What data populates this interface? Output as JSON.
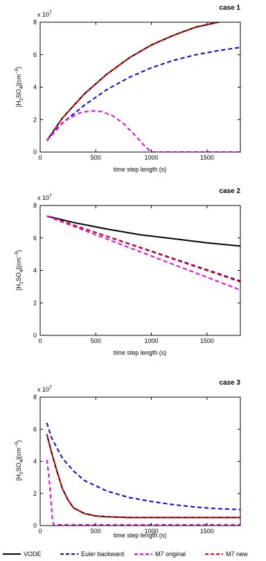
{
  "legend": [
    {
      "label": "VODE",
      "color": "#000000",
      "dash": "solid"
    },
    {
      "label": "Euler backward",
      "color": "#0000ee",
      "dash": "dashed"
    },
    {
      "label": "M7 original",
      "color": "#ee00ee",
      "dash": "dashed"
    },
    {
      "label": "M7 new",
      "color": "#ee0000",
      "dash": "dashed"
    }
  ],
  "chart_data": [
    {
      "type": "line",
      "title": "case 1",
      "xlabel": "time step length (s)",
      "ylabel_main": "[H",
      "ylabel_sub1": "2",
      "ylabel_mid": "SO",
      "ylabel_sub2": "4",
      "ylabel_unit": "](cm",
      "ylabel_sup": "−3",
      "ylabel_close": ")",
      "multiplier_base": "x 10",
      "multiplier_exp": "7",
      "xlim": [
        0,
        1800
      ],
      "ylim": [
        0,
        8
      ],
      "xticks": [
        0,
        500,
        1000,
        1500
      ],
      "yticks": [
        0,
        2,
        4,
        6,
        8
      ],
      "series": [
        {
          "name": "VODE",
          "color": "#000000",
          "dash": "solid",
          "x": [
            60,
            200,
            400,
            600,
            800,
            1000,
            1200,
            1400,
            1600,
            1800
          ],
          "y": [
            0.7,
            2.1,
            3.6,
            4.8,
            5.8,
            6.6,
            7.2,
            7.7,
            8.0,
            8.2
          ]
        },
        {
          "name": "M7 new",
          "color": "#ee0000",
          "dash": "dashed",
          "x": [
            60,
            200,
            400,
            600,
            800,
            1000,
            1200,
            1400,
            1600,
            1800
          ],
          "y": [
            0.7,
            2.1,
            3.6,
            4.8,
            5.8,
            6.6,
            7.2,
            7.7,
            8.0,
            8.2
          ]
        },
        {
          "name": "Euler backward",
          "color": "#0000ee",
          "dash": "dashed",
          "x": [
            60,
            200,
            400,
            600,
            800,
            1000,
            1200,
            1400,
            1600,
            1800
          ],
          "y": [
            0.7,
            1.8,
            2.9,
            3.85,
            4.6,
            5.2,
            5.65,
            6.0,
            6.25,
            6.45
          ]
        },
        {
          "name": "M7 original",
          "color": "#ee00ee",
          "dash": "dashed",
          "x": [
            60,
            150,
            250,
            350,
            450,
            550,
            650,
            750,
            850,
            950,
            1000,
            1200,
            1500,
            1800
          ],
          "y": [
            0.7,
            1.5,
            2.05,
            2.4,
            2.55,
            2.5,
            2.25,
            1.75,
            1.05,
            0.3,
            0,
            0,
            0,
            0
          ]
        }
      ]
    },
    {
      "type": "line",
      "title": "case 2",
      "xlabel": "time step length (s)",
      "ylabel_main": "[H",
      "ylabel_sub1": "2",
      "ylabel_mid": "SO",
      "ylabel_sub2": "4",
      "ylabel_unit": "](cm",
      "ylabel_sup": "−3",
      "ylabel_close": ")",
      "multiplier_base": "x 10",
      "multiplier_exp": "7",
      "xlim": [
        0,
        1800
      ],
      "ylim": [
        0,
        8
      ],
      "xticks": [
        0,
        500,
        1000,
        1500
      ],
      "yticks": [
        0,
        2,
        4,
        6,
        8
      ],
      "series": [
        {
          "name": "VODE",
          "color": "#000000",
          "dash": "solid",
          "x": [
            60,
            300,
            600,
            900,
            1200,
            1500,
            1800
          ],
          "y": [
            7.35,
            6.95,
            6.55,
            6.2,
            5.95,
            5.7,
            5.5
          ]
        },
        {
          "name": "Euler backward",
          "color": "#0000ee",
          "dash": "dashed",
          "x": [
            60,
            1800
          ],
          "y": [
            7.35,
            3.35
          ]
        },
        {
          "name": "M7 new",
          "color": "#ee0000",
          "dash": "dashed",
          "x": [
            60,
            1800
          ],
          "y": [
            7.35,
            3.3
          ]
        },
        {
          "name": "M7 original",
          "color": "#ee00ee",
          "dash": "dashed",
          "x": [
            60,
            1800
          ],
          "y": [
            7.35,
            2.8
          ]
        }
      ]
    },
    {
      "type": "line",
      "title": "case 3",
      "xlabel": "time step length (s)",
      "ylabel_main": "[H",
      "ylabel_sub1": "2",
      "ylabel_mid": "SO",
      "ylabel_sub2": "4",
      "ylabel_unit": "](cm",
      "ylabel_sup": "−3",
      "ylabel_close": ")",
      "multiplier_base": "x 10",
      "multiplier_exp": "7",
      "xlim": [
        0,
        1800
      ],
      "ylim": [
        0,
        8
      ],
      "xticks": [
        0,
        500,
        1000,
        1500
      ],
      "yticks": [
        0,
        2,
        4,
        6,
        8
      ],
      "series": [
        {
          "name": "VODE",
          "color": "#000000",
          "dash": "solid",
          "x": [
            60,
            100,
            150,
            200,
            250,
            300,
            400,
            500,
            600,
            800,
            1000,
            1400,
            1800
          ],
          "y": [
            5.7,
            4.6,
            3.4,
            2.3,
            1.6,
            1.1,
            0.75,
            0.6,
            0.55,
            0.5,
            0.5,
            0.5,
            0.5
          ]
        },
        {
          "name": "M7 new",
          "color": "#ee0000",
          "dash": "dashed",
          "x": [
            60,
            100,
            150,
            200,
            250,
            300,
            400,
            500,
            600,
            800,
            1000,
            1400,
            1800
          ],
          "y": [
            5.7,
            4.6,
            3.4,
            2.3,
            1.6,
            1.1,
            0.75,
            0.6,
            0.55,
            0.5,
            0.5,
            0.5,
            0.5
          ]
        },
        {
          "name": "Euler backward",
          "color": "#0000ee",
          "dash": "dashed",
          "x": [
            60,
            100,
            200,
            300,
            400,
            600,
            800,
            1000,
            1200,
            1400,
            1600,
            1800
          ],
          "y": [
            6.4,
            5.5,
            4.2,
            3.4,
            2.8,
            2.15,
            1.75,
            1.5,
            1.3,
            1.15,
            1.05,
            1.0
          ]
        },
        {
          "name": "M7 original",
          "color": "#ee00ee",
          "dash": "dashed",
          "x": [
            60,
            80,
            100,
            110,
            120,
            300,
            600,
            1000,
            1400,
            1800
          ],
          "y": [
            4.1,
            3.0,
            1.2,
            0.4,
            0.05,
            0.05,
            0.05,
            0.05,
            0.05,
            0.05
          ]
        }
      ]
    }
  ]
}
